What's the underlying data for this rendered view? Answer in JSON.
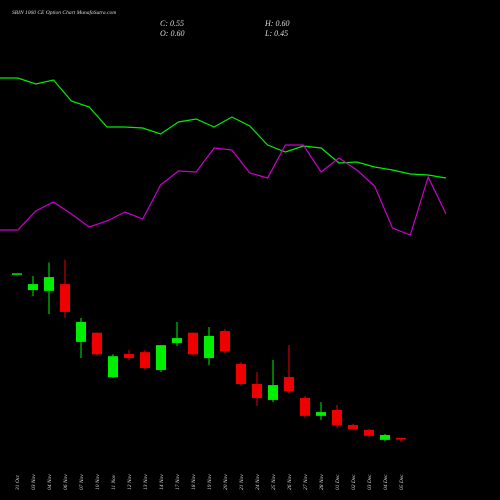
{
  "chart_data": [
    {
      "type": "candlestick",
      "title": "SBIN 1060 CE Option Chart MunafaSutra.com",
      "annotations": [
        "C: 0.55",
        "H: 0.60",
        "O: 0.60",
        "L: 0.45"
      ],
      "categories": [
        "31 Oct",
        "03 Nov",
        "04 Nov",
        "06 Nov",
        "07 Nov",
        "10 Nov",
        "11 Nov",
        "12 Nov",
        "13 Nov",
        "14 Nov",
        "17 Nov",
        "18 Nov",
        "19 Nov",
        "20 Nov",
        "21 Nov",
        "24 Nov",
        "25 Nov",
        "26 Nov",
        "27 Nov",
        "28 Nov",
        "01 Dec",
        "02 Dec",
        "03 Dec",
        "04 Dec",
        "05 Dec"
      ],
      "open": [
        6.7,
        6.08,
        6.05,
        6.3,
        4.16,
        4.5,
        2.85,
        3.71,
        3.78,
        3.12,
        4.12,
        4.5,
        3.56,
        4.56,
        3.34,
        2.6,
        2.01,
        2.86,
        2.08,
        1.42,
        1.64,
        1.08,
        0.9,
        0.53,
        0.6
      ],
      "high": [
        6.7,
        6.6,
        7.1,
        7.2,
        5.05,
        4.5,
        3.7,
        3.86,
        3.86,
        4.04,
        4.9,
        4.5,
        4.71,
        4.64,
        3.41,
        3.04,
        3.49,
        4.04,
        2.16,
        1.93,
        1.82,
        1.12,
        0.93,
        0.75,
        0.6
      ],
      "low": [
        6.7,
        5.86,
        5.19,
        5.05,
        3.56,
        3.64,
        2.82,
        3.49,
        3.12,
        3.04,
        4.01,
        3.64,
        3.3,
        3.75,
        2.53,
        1.79,
        1.93,
        2.27,
        1.34,
        1.27,
        0.97,
        0.9,
        0.64,
        0.49,
        0.45
      ],
      "close": [
        6.7,
        6.3,
        6.56,
        5.27,
        4.9,
        3.7,
        3.63,
        3.56,
        3.19,
        4.04,
        4.3,
        3.7,
        4.38,
        3.82,
        2.6,
        2.08,
        2.56,
        2.34,
        1.42,
        1.56,
        1.08,
        0.93,
        0.68,
        0.71,
        0.55
      ],
      "up_color": "#00ee00",
      "down_color": "#ee0000",
      "ylim": [
        0,
        7.5
      ]
    },
    {
      "type": "line",
      "series": [
        {
          "color": "#00ee00",
          "values": [
            222,
            222,
            216,
            220,
            199,
            193,
            173,
            173,
            172,
            166,
            178,
            181,
            173,
            183,
            174,
            155,
            148,
            154,
            152,
            137,
            138,
            133,
            130,
            126,
            125,
            122
          ]
        },
        {
          "color": "#cc00cc",
          "values": [
            70,
            70,
            89,
            98,
            86,
            73,
            79,
            88,
            81,
            115,
            129,
            128,
            152,
            150,
            127,
            122,
            155,
            155,
            128,
            142,
            130,
            114,
            72,
            65,
            123,
            86
          ]
        }
      ],
      "ylim": [
        40,
        300
      ]
    }
  ]
}
